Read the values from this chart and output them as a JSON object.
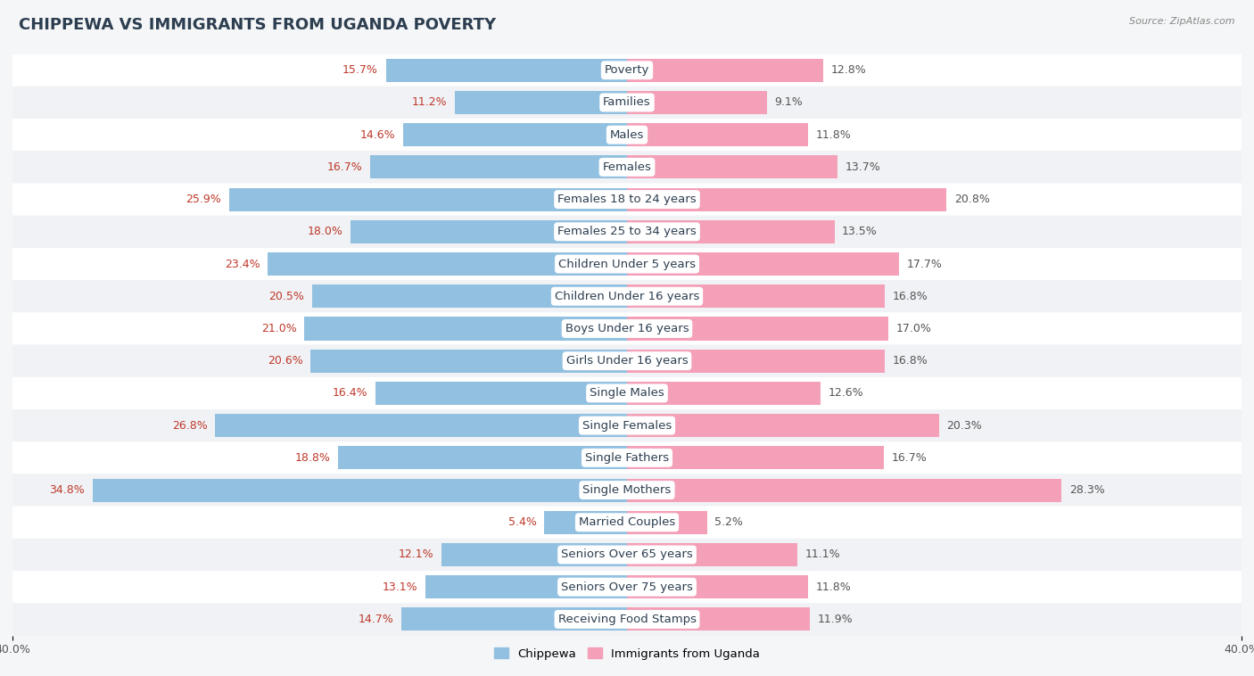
{
  "title": "CHIPPEWA VS IMMIGRANTS FROM UGANDA POVERTY",
  "source": "Source: ZipAtlas.com",
  "categories": [
    "Poverty",
    "Families",
    "Males",
    "Females",
    "Females 18 to 24 years",
    "Females 25 to 34 years",
    "Children Under 5 years",
    "Children Under 16 years",
    "Boys Under 16 years",
    "Girls Under 16 years",
    "Single Males",
    "Single Females",
    "Single Fathers",
    "Single Mothers",
    "Married Couples",
    "Seniors Over 65 years",
    "Seniors Over 75 years",
    "Receiving Food Stamps"
  ],
  "chippewa_values": [
    15.7,
    11.2,
    14.6,
    16.7,
    25.9,
    18.0,
    23.4,
    20.5,
    21.0,
    20.6,
    16.4,
    26.8,
    18.8,
    34.8,
    5.4,
    12.1,
    13.1,
    14.7
  ],
  "uganda_values": [
    12.8,
    9.1,
    11.8,
    13.7,
    20.8,
    13.5,
    17.7,
    16.8,
    17.0,
    16.8,
    12.6,
    20.3,
    16.7,
    28.3,
    5.2,
    11.1,
    11.8,
    11.9
  ],
  "chippewa_color": "#92c0e0",
  "uganda_color": "#f4a0b8",
  "row_color_odd": "#f0f2f5",
  "row_color_even": "#ffffff",
  "background_color": "#f5f6f7",
  "axis_max": 40.0,
  "legend_chippewa": "Chippewa",
  "legend_uganda": "Immigrants from Uganda",
  "title_fontsize": 13,
  "label_fontsize": 9.5,
  "value_fontsize": 9,
  "value_color_chip": "#c0392b",
  "value_color_ug": "#555555"
}
